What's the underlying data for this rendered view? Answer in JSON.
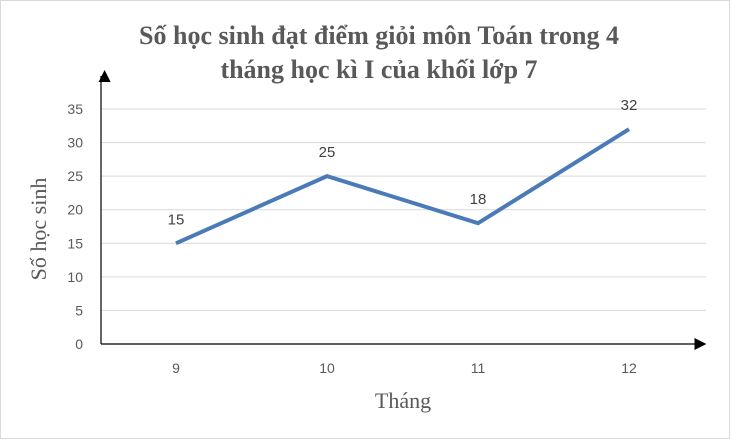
{
  "chart_data": {
    "type": "line",
    "title_lines": [
      "Số học sinh đạt điểm giỏi môn Toán trong 4",
      "tháng học kì I của khối lớp 7"
    ],
    "xlabel": "Tháng",
    "ylabel": "Số học sinh",
    "categories": [
      "9",
      "10",
      "11",
      "12"
    ],
    "series": [
      {
        "values": [
          15,
          25,
          18,
          32
        ],
        "data_labels": [
          "15",
          "25",
          "18",
          "32"
        ]
      }
    ],
    "ylim": [
      0,
      35
    ],
    "yticks": [
      "0",
      "5",
      "10",
      "15",
      "20",
      "25",
      "30",
      "35"
    ],
    "grid": true,
    "colors": {
      "series": "#4a7ab7",
      "grid": "#d9d9d9",
      "axis": "#000000"
    }
  }
}
